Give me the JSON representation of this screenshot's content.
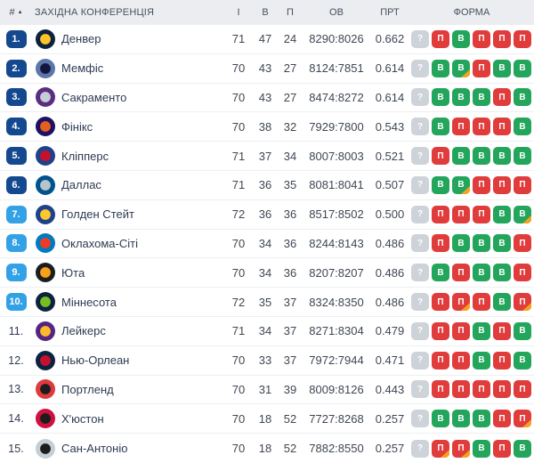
{
  "header": {
    "rank_label": "#",
    "sort_icon": "▲",
    "conference_label": "ЗАХІДНА КОНФЕРЕНЦІЯ",
    "col_games": "І",
    "col_wins": "В",
    "col_losses": "П",
    "col_points": "ОВ",
    "col_pct": "ПРТ",
    "col_form": "ФОРМА"
  },
  "colors": {
    "badge_playoff": "#15498f",
    "badge_playin": "#33a1e6",
    "form_win": "#23a55c",
    "form_loss": "#e03c3c",
    "form_unknown": "#cdd3d9",
    "form_overtime": "#f6a21e",
    "header_bg": "#ebedf0"
  },
  "rows": [
    {
      "rank": "1.",
      "tier": "playoff",
      "team": "Денвер",
      "logo": {
        "primary": "#0e2240",
        "secondary": "#fec524"
      },
      "games": "71",
      "wins": "47",
      "losses": "24",
      "points": "8290:8026",
      "pct": "0.662",
      "form": [
        {
          "label": "?",
          "result": "unknown"
        },
        {
          "label": "П",
          "result": "loss"
        },
        {
          "label": "В",
          "result": "win"
        },
        {
          "label": "П",
          "result": "loss"
        },
        {
          "label": "П",
          "result": "loss"
        },
        {
          "label": "П",
          "result": "loss"
        }
      ]
    },
    {
      "rank": "2.",
      "tier": "playoff",
      "team": "Мемфіс",
      "logo": {
        "primary": "#5d76a9",
        "secondary": "#12173f"
      },
      "games": "70",
      "wins": "43",
      "losses": "27",
      "points": "8124:7851",
      "pct": "0.614",
      "form": [
        {
          "label": "?",
          "result": "unknown"
        },
        {
          "label": "В",
          "result": "win"
        },
        {
          "label": "В",
          "result": "win",
          "ot": true
        },
        {
          "label": "П",
          "result": "loss"
        },
        {
          "label": "В",
          "result": "win"
        },
        {
          "label": "В",
          "result": "win"
        }
      ]
    },
    {
      "rank": "3.",
      "tier": "playoff",
      "team": "Сакраменто",
      "logo": {
        "primary": "#5a2d81",
        "secondary": "#c4ced4"
      },
      "games": "70",
      "wins": "43",
      "losses": "27",
      "points": "8474:8272",
      "pct": "0.614",
      "form": [
        {
          "label": "?",
          "result": "unknown"
        },
        {
          "label": "В",
          "result": "win"
        },
        {
          "label": "В",
          "result": "win"
        },
        {
          "label": "В",
          "result": "win"
        },
        {
          "label": "П",
          "result": "loss"
        },
        {
          "label": "В",
          "result": "win"
        }
      ]
    },
    {
      "rank": "4.",
      "tier": "playoff",
      "team": "Фінікс",
      "logo": {
        "primary": "#1d1160",
        "secondary": "#e56020"
      },
      "games": "70",
      "wins": "38",
      "losses": "32",
      "points": "7929:7800",
      "pct": "0.543",
      "form": [
        {
          "label": "?",
          "result": "unknown"
        },
        {
          "label": "В",
          "result": "win"
        },
        {
          "label": "П",
          "result": "loss"
        },
        {
          "label": "П",
          "result": "loss"
        },
        {
          "label": "П",
          "result": "loss"
        },
        {
          "label": "В",
          "result": "win"
        }
      ]
    },
    {
      "rank": "5.",
      "tier": "playoff",
      "team": "Кліпперс",
      "logo": {
        "primary": "#1d428a",
        "secondary": "#c8102e"
      },
      "games": "71",
      "wins": "37",
      "losses": "34",
      "points": "8007:8003",
      "pct": "0.521",
      "form": [
        {
          "label": "?",
          "result": "unknown"
        },
        {
          "label": "П",
          "result": "loss"
        },
        {
          "label": "В",
          "result": "win"
        },
        {
          "label": "В",
          "result": "win"
        },
        {
          "label": "В",
          "result": "win"
        },
        {
          "label": "В",
          "result": "win"
        }
      ]
    },
    {
      "rank": "6.",
      "tier": "playoff",
      "team": "Даллас",
      "logo": {
        "primary": "#00538c",
        "secondary": "#b8c4ca"
      },
      "games": "71",
      "wins": "36",
      "losses": "35",
      "points": "8081:8041",
      "pct": "0.507",
      "form": [
        {
          "label": "?",
          "result": "unknown"
        },
        {
          "label": "В",
          "result": "win"
        },
        {
          "label": "В",
          "result": "win",
          "ot": true
        },
        {
          "label": "П",
          "result": "loss"
        },
        {
          "label": "П",
          "result": "loss"
        },
        {
          "label": "П",
          "result": "loss"
        }
      ]
    },
    {
      "rank": "7.",
      "tier": "playin",
      "team": "Голден Стейт",
      "logo": {
        "primary": "#1d428a",
        "secondary": "#ffc72c"
      },
      "games": "72",
      "wins": "36",
      "losses": "36",
      "points": "8517:8502",
      "pct": "0.500",
      "form": [
        {
          "label": "?",
          "result": "unknown"
        },
        {
          "label": "П",
          "result": "loss"
        },
        {
          "label": "П",
          "result": "loss"
        },
        {
          "label": "П",
          "result": "loss"
        },
        {
          "label": "В",
          "result": "win"
        },
        {
          "label": "В",
          "result": "win",
          "ot": true
        }
      ]
    },
    {
      "rank": "8.",
      "tier": "playin",
      "team": "Оклахома-Сіті",
      "logo": {
        "primary": "#007ac1",
        "secondary": "#ef3b24"
      },
      "games": "70",
      "wins": "34",
      "losses": "36",
      "points": "8244:8143",
      "pct": "0.486",
      "form": [
        {
          "label": "?",
          "result": "unknown"
        },
        {
          "label": "П",
          "result": "loss"
        },
        {
          "label": "В",
          "result": "win"
        },
        {
          "label": "В",
          "result": "win"
        },
        {
          "label": "В",
          "result": "win"
        },
        {
          "label": "П",
          "result": "loss"
        }
      ]
    },
    {
      "rank": "9.",
      "tier": "playin",
      "team": "Юта",
      "logo": {
        "primary": "#1d1d1d",
        "secondary": "#f9a01b"
      },
      "games": "70",
      "wins": "34",
      "losses": "36",
      "points": "8207:8207",
      "pct": "0.486",
      "form": [
        {
          "label": "?",
          "result": "unknown"
        },
        {
          "label": "В",
          "result": "win"
        },
        {
          "label": "П",
          "result": "loss"
        },
        {
          "label": "В",
          "result": "win"
        },
        {
          "label": "В",
          "result": "win"
        },
        {
          "label": "П",
          "result": "loss"
        }
      ]
    },
    {
      "rank": "10.",
      "tier": "playin",
      "team": "Міннесота",
      "logo": {
        "primary": "#0c2340",
        "secondary": "#78be20"
      },
      "games": "72",
      "wins": "35",
      "losses": "37",
      "points": "8324:8350",
      "pct": "0.486",
      "form": [
        {
          "label": "?",
          "result": "unknown"
        },
        {
          "label": "П",
          "result": "loss"
        },
        {
          "label": "П",
          "result": "loss",
          "ot": true
        },
        {
          "label": "П",
          "result": "loss"
        },
        {
          "label": "В",
          "result": "win"
        },
        {
          "label": "П",
          "result": "loss",
          "ot": true
        }
      ]
    },
    {
      "rank": "11.",
      "tier": "none",
      "team": "Лейкерс",
      "logo": {
        "primary": "#552583",
        "secondary": "#fdb927"
      },
      "games": "71",
      "wins": "34",
      "losses": "37",
      "points": "8271:8304",
      "pct": "0.479",
      "form": [
        {
          "label": "?",
          "result": "unknown"
        },
        {
          "label": "П",
          "result": "loss"
        },
        {
          "label": "П",
          "result": "loss"
        },
        {
          "label": "В",
          "result": "win"
        },
        {
          "label": "П",
          "result": "loss"
        },
        {
          "label": "В",
          "result": "win"
        }
      ]
    },
    {
      "rank": "12.",
      "tier": "none",
      "team": "Нью-Орлеан",
      "logo": {
        "primary": "#0c2340",
        "secondary": "#c8102e"
      },
      "games": "70",
      "wins": "33",
      "losses": "37",
      "points": "7972:7944",
      "pct": "0.471",
      "form": [
        {
          "label": "?",
          "result": "unknown"
        },
        {
          "label": "П",
          "result": "loss"
        },
        {
          "label": "П",
          "result": "loss"
        },
        {
          "label": "В",
          "result": "win"
        },
        {
          "label": "П",
          "result": "loss"
        },
        {
          "label": "В",
          "result": "win"
        }
      ]
    },
    {
      "rank": "13.",
      "tier": "none",
      "team": "Портленд",
      "logo": {
        "primary": "#e03a3e",
        "secondary": "#1d1d1d"
      },
      "games": "70",
      "wins": "31",
      "losses": "39",
      "points": "8009:8126",
      "pct": "0.443",
      "form": [
        {
          "label": "?",
          "result": "unknown"
        },
        {
          "label": "П",
          "result": "loss"
        },
        {
          "label": "П",
          "result": "loss"
        },
        {
          "label": "П",
          "result": "loss"
        },
        {
          "label": "П",
          "result": "loss"
        },
        {
          "label": "П",
          "result": "loss"
        }
      ]
    },
    {
      "rank": "14.",
      "tier": "none",
      "team": "Х'юстон",
      "logo": {
        "primary": "#ce1141",
        "secondary": "#1d1d1d"
      },
      "games": "70",
      "wins": "18",
      "losses": "52",
      "points": "7727:8268",
      "pct": "0.257",
      "form": [
        {
          "label": "?",
          "result": "unknown"
        },
        {
          "label": "В",
          "result": "win"
        },
        {
          "label": "В",
          "result": "win"
        },
        {
          "label": "В",
          "result": "win"
        },
        {
          "label": "П",
          "result": "loss"
        },
        {
          "label": "П",
          "result": "loss",
          "ot": true
        }
      ]
    },
    {
      "rank": "15.",
      "tier": "none",
      "team": "Сан-Антоніо",
      "logo": {
        "primary": "#c4ced4",
        "secondary": "#1d1d1d"
      },
      "games": "70",
      "wins": "18",
      "losses": "52",
      "points": "7882:8550",
      "pct": "0.257",
      "form": [
        {
          "label": "?",
          "result": "unknown"
        },
        {
          "label": "П",
          "result": "loss",
          "ot": true
        },
        {
          "label": "П",
          "result": "loss",
          "ot": true
        },
        {
          "label": "В",
          "result": "win"
        },
        {
          "label": "П",
          "result": "loss"
        },
        {
          "label": "В",
          "result": "win"
        }
      ]
    }
  ]
}
